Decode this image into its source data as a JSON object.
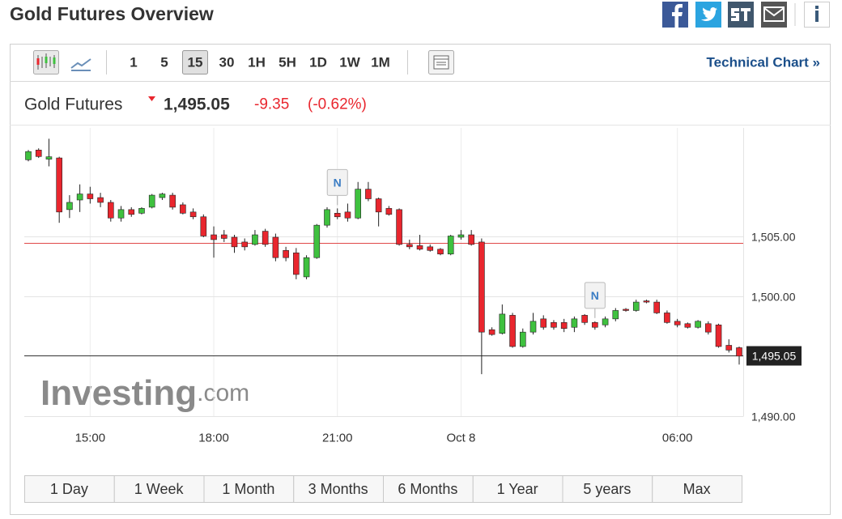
{
  "header": {
    "title": "Gold Futures Overview"
  },
  "toolbar": {
    "intervals": [
      "1",
      "5",
      "15",
      "30",
      "1H",
      "5H",
      "1D",
      "1W",
      "1M"
    ],
    "active_interval": "15",
    "technical_chart_link": "Technical Chart »"
  },
  "quote": {
    "name": "Gold Futures",
    "price": "1,495.05",
    "change": "-9.35",
    "change_pct": "(-0.62%)"
  },
  "watermark": [
    "Investing",
    ".com"
  ],
  "chart_data": {
    "type": "candlestick",
    "categories": [
      null,
      null,
      null,
      null,
      null,
      null,
      "15:00",
      null,
      null,
      null,
      null,
      null,
      null,
      null,
      null,
      null,
      null,
      null,
      "18:00",
      null,
      null,
      null,
      null,
      null,
      null,
      null,
      null,
      null,
      null,
      null,
      "21:00",
      null,
      null,
      null,
      null,
      null,
      null,
      null,
      null,
      null,
      null,
      null,
      "Oct 8",
      null,
      null,
      null,
      null,
      null,
      null,
      null,
      null,
      null,
      null,
      null,
      null,
      null,
      null,
      null,
      null,
      null,
      null,
      null,
      null,
      "06:00",
      null,
      null,
      null,
      null,
      null,
      null
    ],
    "open": [
      1511.35,
      1512.16,
      1511.4,
      1511.5,
      1507.2,
      1508.0,
      1508.5,
      1508.2,
      1507.8,
      1506.5,
      1507.2,
      1506.9,
      1507.4,
      1508.2,
      1508.4,
      1507.6,
      1507.0,
      1506.6,
      1505.1,
      1505.1,
      1504.9,
      1504.5,
      1504.3,
      1505.4,
      1504.9,
      1503.8,
      1503.6,
      1501.6,
      1503.2,
      1505.9,
      1506.9,
      1507.0,
      1506.5,
      1508.9,
      1508.1,
      1507.3,
      1507.2,
      1504.3,
      1504.2,
      1504.1,
      1503.9,
      1503.5,
      1504.9,
      1505.1,
      1504.5,
      1497.2,
      1496.9,
      1498.4,
      1495.8,
      1497.0,
      1498.1,
      1497.8,
      1497.8,
      1497.4,
      1498.4,
      1497.8,
      1497.6,
      1498.1,
      1498.9,
      1498.8,
      1499.6,
      1499.5,
      1498.6,
      1497.9,
      1497.7,
      1497.4,
      1497.7,
      1497.6,
      1495.9,
      1495.7
    ],
    "high": [
      1512.16,
      1512.3,
      1513.1,
      1511.6,
      1508.4,
      1509.3,
      1509.1,
      1508.6,
      1508.0,
      1507.5,
      1507.4,
      1507.4,
      1508.5,
      1508.6,
      1508.6,
      1507.8,
      1507.3,
      1506.8,
      1505.8,
      1505.5,
      1505.1,
      1504.8,
      1505.5,
      1505.6,
      1505.2,
      1504.1,
      1504.0,
      1503.4,
      1506.0,
      1507.4,
      1507.3,
      1507.7,
      1509.5,
      1509.5,
      1508.2,
      1507.5,
      1507.3,
      1504.7,
      1505.1,
      1504.3,
      1504.0,
      1505.1,
      1505.5,
      1505.5,
      1504.8,
      1497.4,
      1499.3,
      1498.6,
      1497.3,
      1498.6,
      1498.4,
      1498.0,
      1498.1,
      1498.3,
      1498.5,
      1497.9,
      1498.3,
      1499.0,
      1499.0,
      1499.7,
      1499.7,
      1499.7,
      1498.8,
      1498.1,
      1497.8,
      1498.0,
      1497.9,
      1497.7,
      1496.4,
      1495.8
    ],
    "low": [
      1511.22,
      1511.5,
      1510.8,
      1506.1,
      1506.5,
      1507.0,
      1507.7,
      1507.4,
      1506.2,
      1506.2,
      1506.6,
      1506.8,
      1507.3,
      1508.0,
      1507.2,
      1506.8,
      1506.4,
      1504.9,
      1503.2,
      1504.5,
      1503.6,
      1503.8,
      1504.2,
      1504.1,
      1502.9,
      1502.9,
      1501.4,
      1501.4,
      1503.1,
      1505.7,
      1506.4,
      1506.2,
      1506.4,
      1507.9,
      1505.8,
      1506.7,
      1504.2,
      1503.9,
      1503.8,
      1503.7,
      1503.4,
      1503.4,
      1504.7,
      1504.2,
      1493.5,
      1496.7,
      1496.8,
      1495.7,
      1495.7,
      1496.8,
      1497.2,
      1497.2,
      1497.0,
      1497.0,
      1497.6,
      1497.2,
      1497.4,
      1497.9,
      1498.7,
      1498.7,
      1499.4,
      1498.5,
      1497.7,
      1497.4,
      1497.3,
      1497.3,
      1496.8,
      1495.7,
      1495.3,
      1494.3
    ],
    "close": [
      1512.03,
      1511.62,
      1511.6,
      1507.0,
      1507.8,
      1508.5,
      1508.1,
      1507.8,
      1506.5,
      1507.2,
      1506.8,
      1507.3,
      1508.4,
      1508.5,
      1507.4,
      1506.9,
      1506.6,
      1505.0,
      1504.7,
      1504.8,
      1504.1,
      1504.1,
      1505.1,
      1504.3,
      1503.2,
      1503.2,
      1501.8,
      1503.2,
      1505.9,
      1507.2,
      1506.6,
      1506.5,
      1508.9,
      1508.1,
      1507.0,
      1506.8,
      1504.3,
      1504.1,
      1503.9,
      1503.8,
      1503.5,
      1505.0,
      1505.1,
      1504.3,
      1497.0,
      1496.8,
      1498.5,
      1495.8,
      1497.0,
      1497.9,
      1497.4,
      1497.4,
      1497.3,
      1498.1,
      1497.8,
      1497.4,
      1498.1,
      1498.8,
      1498.8,
      1499.5,
      1499.5,
      1498.6,
      1497.8,
      1497.6,
      1497.4,
      1497.9,
      1497.0,
      1495.8,
      1495.5,
      1495.0
    ],
    "up_color": "#3fc13f",
    "down_color": "#e9262e",
    "ylim": [
      1490,
      1514
    ],
    "yticks": [
      {
        "value": 1490,
        "label": "1,490.00"
      },
      {
        "value": 1500,
        "label": "1,500.00"
      },
      {
        "value": 1505,
        "label": "1,505.00"
      }
    ],
    "reference_line": 1504.4,
    "current_price": {
      "value": 1495.05,
      "label": "1,495.05"
    },
    "annotations": [
      "N",
      "N"
    ],
    "grid": true
  },
  "range_buttons": [
    "1 Day",
    "1 Week",
    "1 Month",
    "3 Months",
    "6 Months",
    "1 Year",
    "5 years",
    "Max"
  ]
}
